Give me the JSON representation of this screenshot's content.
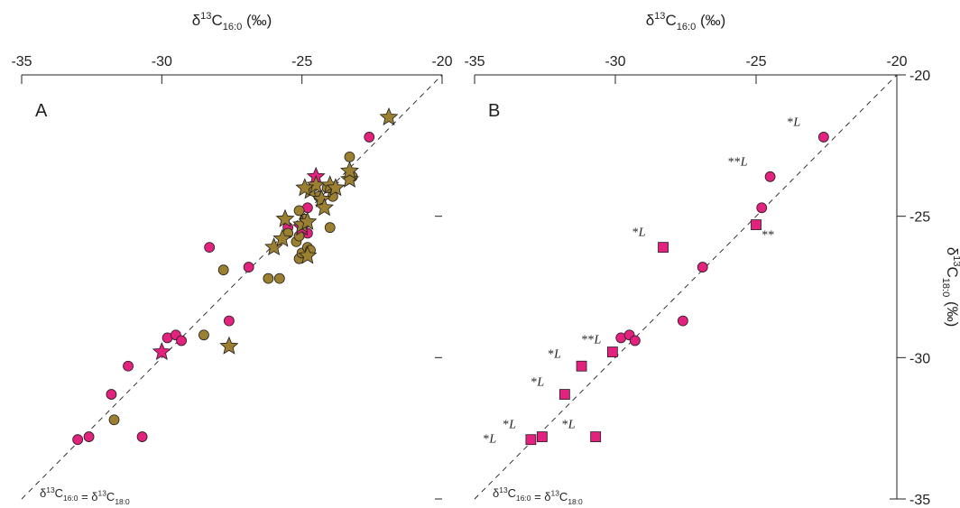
{
  "chart_data": [
    {
      "panel": "A",
      "type": "scatter",
      "xlabel": "δ13C16:0 (‰)",
      "xlim": [
        -35,
        -20
      ],
      "ylim": [
        -20,
        -35
      ],
      "xticks": [
        "-35",
        "-30",
        "-25",
        "-20"
      ],
      "reference_line": "δ13C16:0 = δ13C18:0",
      "colors": {
        "pink": "#e3217e",
        "olive": "#9a8030"
      },
      "series": [
        {
          "marker": "circle",
          "color": "#e3217e",
          "points": [
            [
              -33.0,
              -32.9
            ],
            [
              -32.6,
              -32.8
            ],
            [
              -31.2,
              -30.3
            ],
            [
              -31.8,
              -31.3
            ],
            [
              -30.7,
              -32.8
            ],
            [
              -29.8,
              -29.3
            ],
            [
              -29.5,
              -29.2
            ],
            [
              -29.3,
              -29.4
            ],
            [
              -28.3,
              -26.1
            ],
            [
              -27.6,
              -28.7
            ],
            [
              -26.9,
              -26.8
            ],
            [
              -24.8,
              -24.7
            ],
            [
              -22.6,
              -22.2
            ],
            [
              -25.5,
              -25.4
            ],
            [
              -24.8,
              -25.6
            ]
          ]
        },
        {
          "marker": "circle",
          "color": "#9a8030",
          "points": [
            [
              -31.7,
              -32.2
            ],
            [
              -28.5,
              -29.2
            ],
            [
              -27.8,
              -26.9
            ],
            [
              -26.2,
              -27.2
            ],
            [
              -25.8,
              -27.2
            ],
            [
              -25.1,
              -26.5
            ],
            [
              -25.0,
              -26.3
            ],
            [
              -24.8,
              -26.1
            ],
            [
              -24.7,
              -26.2
            ],
            [
              -25.2,
              -25.9
            ],
            [
              -25.0,
              -25.5
            ],
            [
              -24.9,
              -25.1
            ],
            [
              -25.1,
              -24.8
            ],
            [
              -24.4,
              -24.3
            ],
            [
              -24.1,
              -24.0
            ],
            [
              -23.9,
              -24.3
            ],
            [
              -24.0,
              -25.4
            ],
            [
              -23.3,
              -22.9
            ],
            [
              -25.5,
              -25.6
            ],
            [
              -23.2,
              -23.6
            ],
            [
              -25.1,
              -25.7
            ]
          ]
        },
        {
          "marker": "star",
          "color": "#e3217e",
          "points": [
            [
              -30.0,
              -29.8
            ],
            [
              -24.5,
              -23.6
            ],
            [
              -25.0,
              -25.4
            ]
          ]
        },
        {
          "marker": "star",
          "color": "#9a8030",
          "points": [
            [
              -21.9,
              -21.5
            ],
            [
              -27.6,
              -29.6
            ],
            [
              -26.0,
              -26.1
            ],
            [
              -25.7,
              -25.8
            ],
            [
              -25.6,
              -25.1
            ],
            [
              -25.0,
              -25.3
            ],
            [
              -24.8,
              -25.2
            ],
            [
              -24.7,
              -24.1
            ],
            [
              -24.5,
              -23.9
            ],
            [
              -24.3,
              -24.4
            ],
            [
              -24.2,
              -24.7
            ],
            [
              -24.0,
              -23.9
            ],
            [
              -23.8,
              -24.0
            ],
            [
              -23.3,
              -23.7
            ],
            [
              -23.3,
              -23.4
            ],
            [
              -24.8,
              -26.4
            ],
            [
              -24.9,
              -24.0
            ]
          ]
        }
      ]
    },
    {
      "panel": "B",
      "type": "scatter",
      "xlabel": "δ13C16:0 (‰)",
      "ylabel": "δ13C18:0 (‰)",
      "xlim": [
        -35,
        -20
      ],
      "ylim": [
        -20,
        -35
      ],
      "xticks": [
        "-35",
        "-30",
        "-25",
        "-20"
      ],
      "yticks": [
        "-20",
        "-25",
        "-30",
        "-35"
      ],
      "reference_line": "δ13C16:0 = δ13C18:0",
      "series": [
        {
          "marker": "circle",
          "color": "#e3217e",
          "points": [
            [
              -22.6,
              -22.2
            ],
            [
              -24.5,
              -23.6
            ],
            [
              -24.8,
              -24.7
            ],
            [
              -26.9,
              -26.8
            ],
            [
              -27.6,
              -28.7
            ],
            [
              -29.8,
              -29.3
            ],
            [
              -29.5,
              -29.2
            ],
            [
              -29.3,
              -29.4
            ]
          ]
        },
        {
          "marker": "square",
          "color": "#e3217e",
          "points": [
            [
              -28.3,
              -26.1
            ],
            [
              -25.0,
              -25.3
            ],
            [
              -30.1,
              -29.8
            ],
            [
              -31.2,
              -30.3
            ],
            [
              -31.8,
              -31.3
            ],
            [
              -33.0,
              -32.9
            ],
            [
              -32.6,
              -32.8
            ],
            [
              -30.7,
              -32.8
            ]
          ]
        }
      ],
      "annotations": [
        {
          "stars": "*",
          "italic": "L",
          "x": -23.9,
          "y": -21.8
        },
        {
          "stars": "**",
          "italic": "L",
          "x": -26.0,
          "y": -23.2
        },
        {
          "stars": "**",
          "italic": "",
          "x": -24.8,
          "y": -25.8
        },
        {
          "stars": "*",
          "italic": "L",
          "x": -29.4,
          "y": -25.7
        },
        {
          "stars": "**",
          "italic": "L",
          "x": -31.2,
          "y": -29.5
        },
        {
          "stars": "*",
          "italic": "L",
          "x": -32.4,
          "y": -30.0
        },
        {
          "stars": "*",
          "italic": "L",
          "x": -33.0,
          "y": -31.0
        },
        {
          "stars": "*",
          "italic": "L",
          "x": -34.0,
          "y": -32.5
        },
        {
          "stars": "*",
          "italic": "L",
          "x": -34.7,
          "y": -33.0
        },
        {
          "stars": "*",
          "italic": "L",
          "x": -31.9,
          "y": -32.5
        }
      ]
    }
  ]
}
